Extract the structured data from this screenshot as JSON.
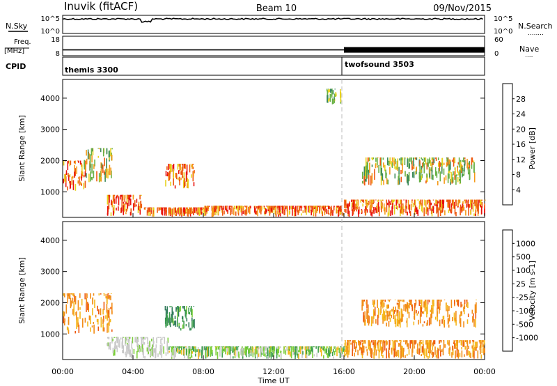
{
  "header": {
    "station": "Inuvik (fitACF)",
    "beam": "Beam 10",
    "date": "09/Nov/2015"
  },
  "top_strip": {
    "left_label": "N.Sky",
    "left_ticks": [
      "10^5",
      "10^0"
    ],
    "right_ticks": [
      "10^5",
      "10^0"
    ],
    "right_label": "N.Search",
    "right_dots": "........"
  },
  "freq_strip": {
    "left_label_1": "Freq.",
    "left_label_2": "[MHz]",
    "left_ticks": [
      "18",
      "8"
    ],
    "right_ticks": [
      "60",
      "0"
    ],
    "right_label": "Nave",
    "right_dots": "...."
  },
  "cpid_strip": {
    "label": "CPID",
    "segments": [
      {
        "start_hour": 0,
        "end_hour": 16,
        "name": "themis 3300"
      },
      {
        "start_hour": 16,
        "end_hour": 24,
        "name": "twofsound 3503"
      }
    ]
  },
  "axes": {
    "xlabel": "Time UT",
    "x_ticks": [
      "00:00",
      "04:00",
      "08:00",
      "12:00",
      "16:00",
      "20:00",
      "00:00"
    ],
    "x_range_hours": [
      0,
      24
    ],
    "ylabel": "Slant Range [km]",
    "y_range_km": [
      180,
      4600
    ],
    "y_ticks": [
      1000,
      2000,
      3000,
      4000
    ]
  },
  "power_colorbar": {
    "label": "Power [dB]",
    "ticks": [
      "4",
      "8",
      "12",
      "16",
      "20",
      "24",
      "28"
    ],
    "colors": [
      "#1a1aff",
      "#2b5fb0",
      "#3d8a5a",
      "#68b044",
      "#e8d21e",
      "#f59a17",
      "#ee5a10",
      "#e8120c"
    ]
  },
  "velocity_colorbar": {
    "label": "Velocity [m s-1]",
    "ticks": [
      "1000",
      "500",
      "100",
      "25",
      "-25",
      "-100",
      "-500",
      "-1000"
    ],
    "colors": [
      "#2a4fb5",
      "#2f7a5a",
      "#3f9f4f",
      "#7ccf3a",
      "#c8c8c8",
      "#f5b71c",
      "#f28c16",
      "#ee5a10",
      "#e8120c"
    ]
  },
  "chart_data": {
    "type": "heatmap",
    "title": "Inuvik (fitACF) Beam 10 09/Nov/2015",
    "xlabel": "Time UT",
    "ylabel": "Slant Range [km]",
    "x_range_hours": [
      0,
      24
    ],
    "y_range_km": [
      180,
      4600
    ],
    "mode_change_hour": 16,
    "power_regions": [
      {
        "t0": 0.0,
        "t1": 1.3,
        "r0": 1000,
        "r1": 2000,
        "level": "high"
      },
      {
        "t0": 1.2,
        "t1": 2.8,
        "r0": 1300,
        "r1": 2400,
        "level": "medium"
      },
      {
        "t0": 2.5,
        "t1": 4.5,
        "r0": 200,
        "r1": 900,
        "level": "high"
      },
      {
        "t0": 4.5,
        "t1": 8.0,
        "r0": 200,
        "r1": 500,
        "level": "high"
      },
      {
        "t0": 5.8,
        "t1": 7.5,
        "r0": 1100,
        "r1": 1900,
        "level": "high"
      },
      {
        "t0": 8.0,
        "t1": 16.0,
        "r0": 200,
        "r1": 550,
        "level": "high"
      },
      {
        "t0": 16.0,
        "t1": 24.0,
        "r0": 200,
        "r1": 750,
        "level": "high"
      },
      {
        "t0": 17.0,
        "t1": 23.5,
        "r0": 1200,
        "r1": 2100,
        "level": "medium"
      },
      {
        "t0": 15.0,
        "t1": 15.8,
        "r0": 3800,
        "r1": 4300,
        "level": "low"
      }
    ],
    "velocity_regions": [
      {
        "t0": 0.0,
        "t1": 2.8,
        "r0": 1000,
        "r1": 2300,
        "class": "negative"
      },
      {
        "t0": 2.5,
        "t1": 6.0,
        "r0": 200,
        "r1": 900,
        "class": "ground_scatter"
      },
      {
        "t0": 5.8,
        "t1": 7.5,
        "r0": 1100,
        "r1": 1900,
        "class": "positive"
      },
      {
        "t0": 6.0,
        "t1": 16.0,
        "r0": 200,
        "r1": 600,
        "class": "low_positive"
      },
      {
        "t0": 16.0,
        "t1": 24.0,
        "r0": 200,
        "r1": 800,
        "class": "negative"
      },
      {
        "t0": 17.0,
        "t1": 23.5,
        "r0": 1200,
        "r1": 2100,
        "class": "negative"
      }
    ],
    "nsky_level": 0.8,
    "freq_mhz": 11,
    "nave": 30
  }
}
